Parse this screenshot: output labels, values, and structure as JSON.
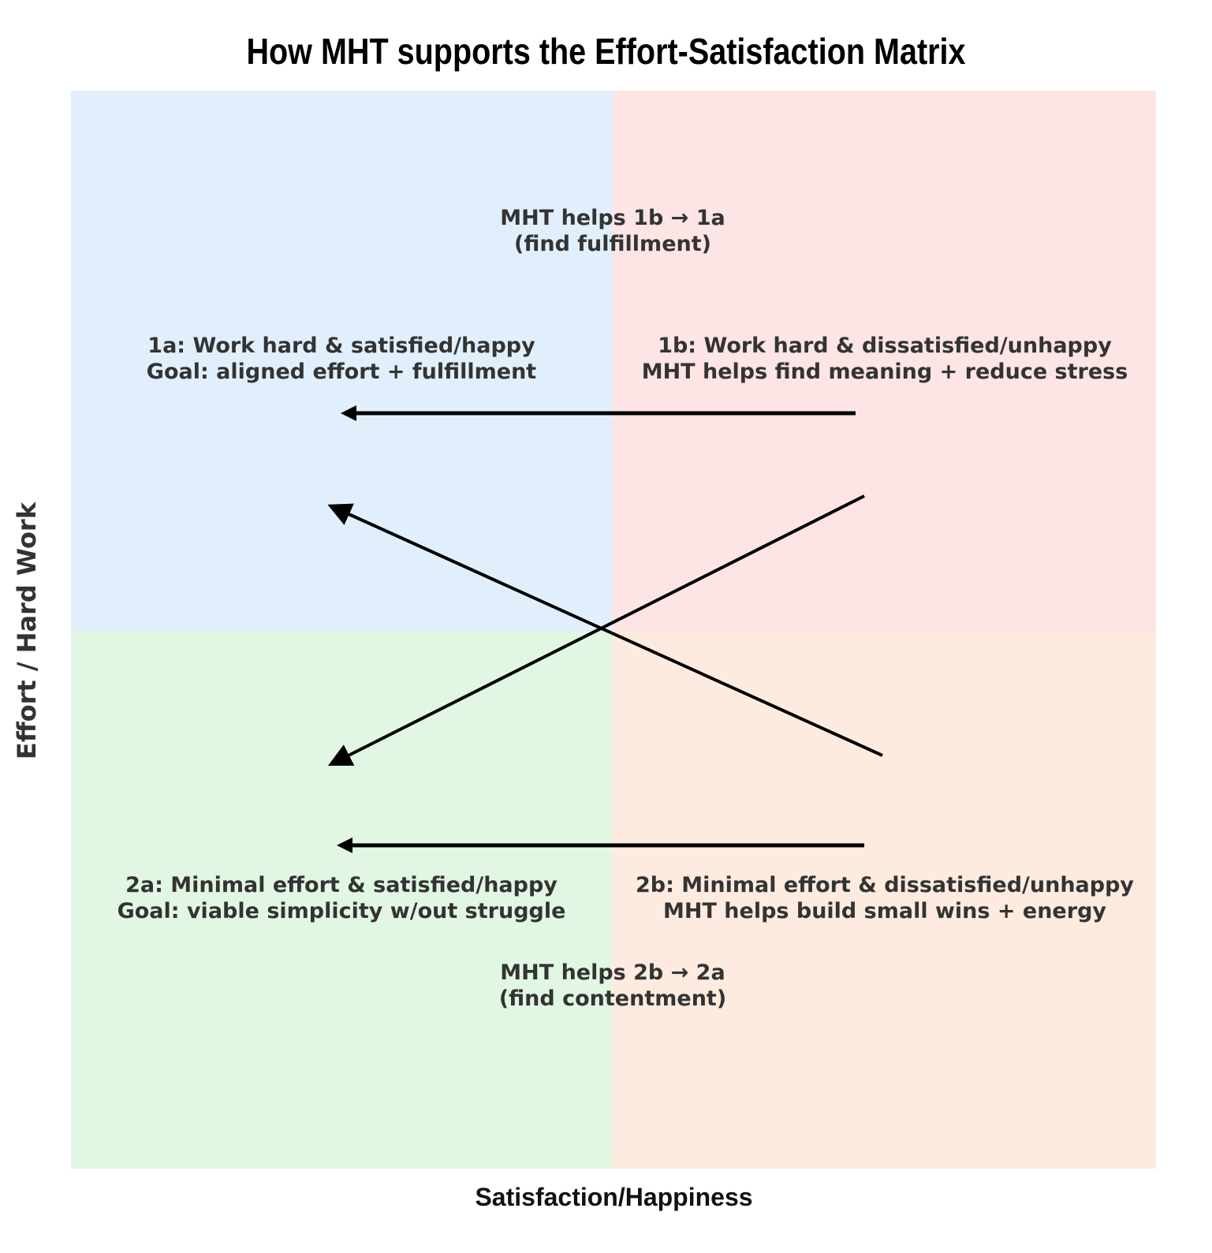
{
  "title": "How MHT supports the Effort-Satisfaction Matrix",
  "axes": {
    "x_label": "Satisfaction/Happiness",
    "y_label": "Effort / Hard Work"
  },
  "colors": {
    "q1a": "#e1effc",
    "q1b": "#fde4e5",
    "q2a": "#e1f7e4",
    "q2b": "#feebdf",
    "arrow": "#000000",
    "text": "#333333"
  },
  "quadrants": {
    "q1a": {
      "line1": "1a: Work hard & satisfied/happy",
      "line2": "Goal: aligned effort + fulfillment"
    },
    "q1b": {
      "line1": "1b: Work hard & dissatisfied/unhappy",
      "line2": "MHT helps find meaning + reduce stress"
    },
    "q2a": {
      "line1": "2a: Minimal effort & satisfied/happy",
      "line2": "Goal: viable simplicity w/out struggle"
    },
    "q2b": {
      "line1": "2b: Minimal effort & dissatisfied/unhappy",
      "line2": "MHT helps build small wins + energy"
    }
  },
  "transitions": {
    "top": {
      "line1": "MHT helps 1b → 1a",
      "line2": "(find fulfillment)"
    },
    "bottom": {
      "line1": "MHT helps 2b → 2a",
      "line2": "(find contentment)"
    }
  },
  "arrows": [
    {
      "from": "1b",
      "to": "1a"
    },
    {
      "from": "2b",
      "to": "1a"
    },
    {
      "from": "1b",
      "to": "2a"
    },
    {
      "from": "2b",
      "to": "2a"
    }
  ]
}
